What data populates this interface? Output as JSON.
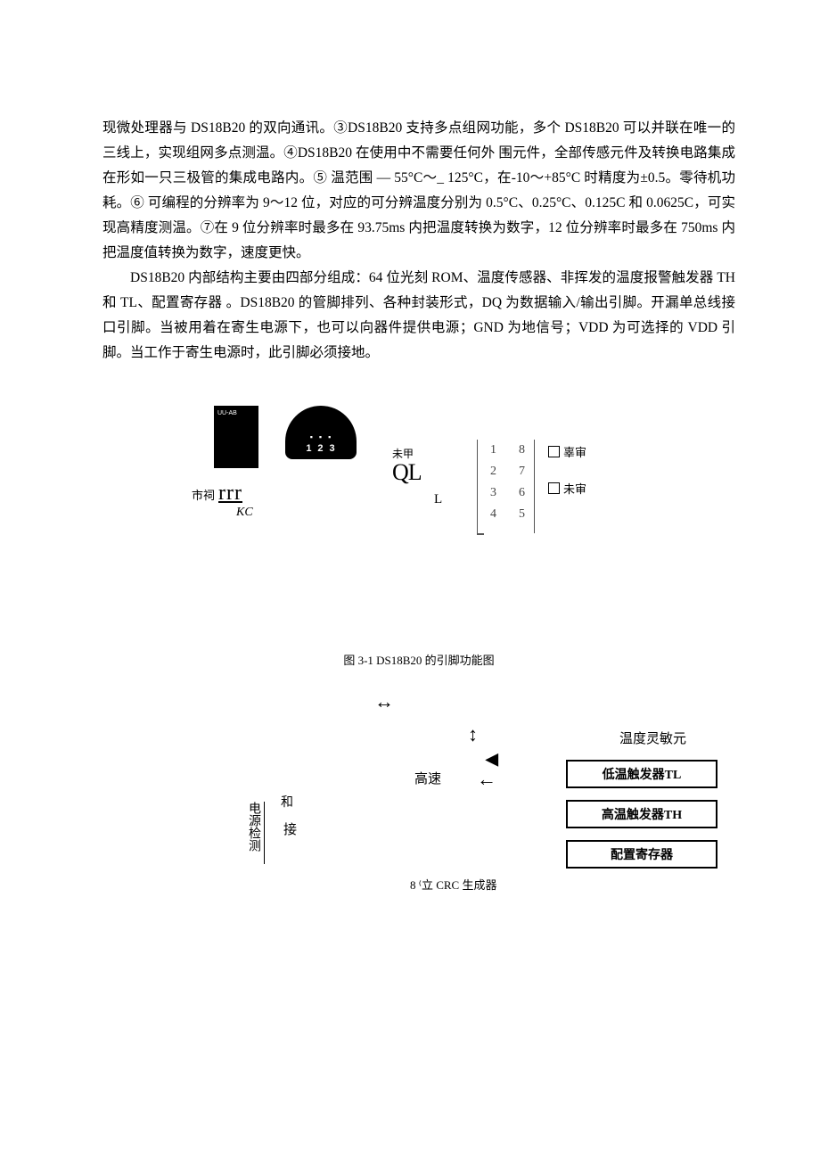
{
  "paragraphs": {
    "p1": "现微处理器与 DS18B20 的双向通讯。③DS18B20 支持多点组网功能，多个 DS18B20 可以并联在唯一的三线上，实现组网多点测温。④DS18B20 在使用中不需要任何外 围元件，全部传感元件及转换电路集成在形如一只三极管的集成电路内。⑤ 温范围 — 55°C〜_ 125°C，在-10〜+85°C 时精度为±0.5。零待机功耗。⑥ 可编程的分辨率为 9〜12 位，对应的可分辨温度分别为 0.5°C、0.25°C、0.125C 和 0.0625C，可实现高精度测温。⑦在 9 位分辨率时最多在 93.75ms 内把温度转换为数字，12 位分辨率时最多在 750ms 内把温度值转换为数字，速度更快。",
    "p2": "DS18B20 内部结构主要由四部分组成：64 位光刻 ROM、温度传感器、非挥发的温度报警触发器 TH 和 TL、配置寄存器 。DS18B20 的管脚排列、各种封装形式，DQ 为数据输入/输出引脚。开漏单总线接口引脚。当被用着在寄生电源下，也可以向器件提供电源；GND 为地信号；VDD 为可选择的 VDD 引脚。当工作于寄生电源时，此引脚必须接地。"
  },
  "figure1": {
    "caption": "图 3-1 DS18B20 的引脚功能图",
    "to92_label": "UU-AB",
    "to92_pins": "123",
    "shici": "市祠",
    "rrr": "rrr",
    "kc": "KC",
    "weijia": "未甲",
    "ql": "QL",
    "l_label": "L",
    "soic_pins": [
      {
        "l": "1",
        "r": "8"
      },
      {
        "l": "2",
        "r": "7"
      },
      {
        "l": "3",
        "r": "6"
      },
      {
        "l": "4",
        "r": "5"
      }
    ],
    "checkbox1": "辜审",
    "checkbox2": "未审"
  },
  "figure2": {
    "temp_sensor": "温度灵敏元",
    "gaosu": "高速",
    "he": "和",
    "jie": "接",
    "power_detect": "电源检测",
    "box_tl": "低温触发器TL",
    "box_th": "高温触发器TH",
    "box_cfg": "配置寄存器",
    "crc": "8 ⁽立 CRC 生成器",
    "arrow_h": "↔",
    "arrow_v": "↕",
    "arrow_l1": "◀",
    "arrow_l2": "←"
  }
}
